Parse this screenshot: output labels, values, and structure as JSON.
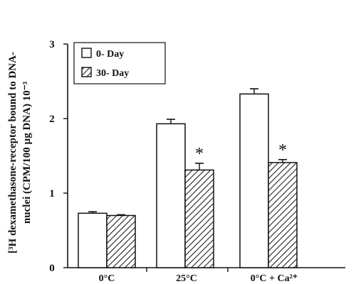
{
  "chart_data": {
    "type": "bar",
    "title": "",
    "ylabel_line1": "[³H dexamethasone-receptor bound to DNA-",
    "ylabel_line2": "nuclei (CPM/100 µg DNA) 10⁻³",
    "xlabel": "",
    "categories": [
      "0°C",
      "25°C",
      "0°C  + Ca²⁺"
    ],
    "ylim": [
      0,
      3
    ],
    "yticks": [
      0,
      1,
      2,
      3
    ],
    "ytick_labels": [
      "0",
      "1",
      "2",
      "3"
    ],
    "legend_position": "top-left",
    "series": [
      {
        "name": "0- Day",
        "pattern": "open",
        "values": [
          0.73,
          1.93,
          2.33
        ],
        "errors": [
          0.02,
          0.06,
          0.07
        ]
      },
      {
        "name": "30- Day",
        "pattern": "hatched",
        "values": [
          0.7,
          1.31,
          1.41
        ],
        "errors": [
          0.01,
          0.09,
          0.04
        ]
      }
    ],
    "significance_marks": [
      {
        "category_index": 1,
        "series_index": 1,
        "label": "*"
      },
      {
        "category_index": 2,
        "series_index": 1,
        "label": "*"
      }
    ],
    "grid": false
  }
}
